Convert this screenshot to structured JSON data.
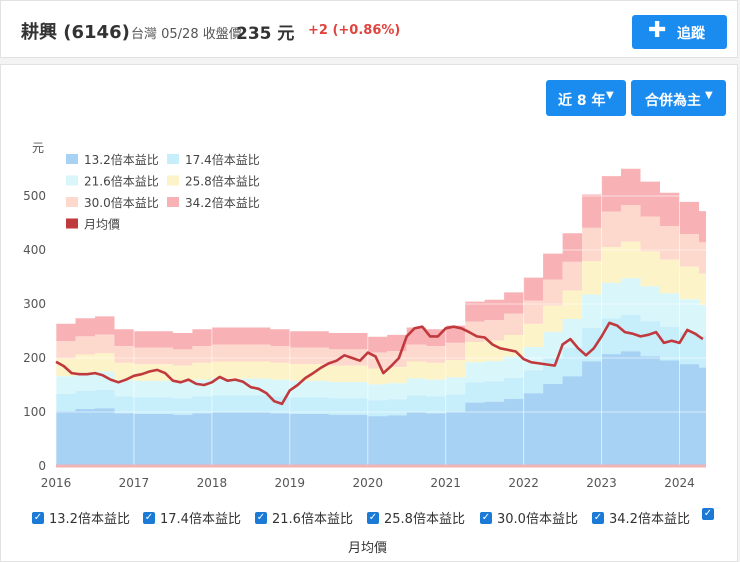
{
  "header": {
    "stock_name": "耕興 (6146)",
    "market_date": "台灣 05/28 收盤價",
    "price": "235 元",
    "change": "+2 (+0.86%)",
    "track_label": "追蹤"
  },
  "controls": {
    "range_label": "近 8 年",
    "mode_label": "合併為主"
  },
  "chart_data": {
    "type": "area",
    "yunit": "元",
    "ylim": [
      0,
      560
    ],
    "yticks": [
      0,
      100,
      200,
      300,
      400,
      500
    ],
    "xticks": [
      "2016",
      "2017",
      "2018",
      "2019",
      "2020",
      "2021",
      "2022",
      "2023",
      "2024"
    ],
    "xrange": [
      2016.0,
      2024.34
    ],
    "colors": [
      "#a7d2f4",
      "#c6eefb",
      "#d9f7fb",
      "#fdf3c8",
      "#fdd8cd",
      "#f8b2b6"
    ],
    "line_color": "#c0393d",
    "multipliers": [
      13.2,
      17.4,
      21.6,
      25.8,
      30.0,
      34.2
    ],
    "legend": [
      {
        "label": "13.2倍本益比",
        "color": "#a7d2f4"
      },
      {
        "label": "17.4倍本益比",
        "color": "#c6eefb"
      },
      {
        "label": "21.6倍本益比",
        "color": "#d9f7fb"
      },
      {
        "label": "25.8倍本益比",
        "color": "#fdf3c8"
      },
      {
        "label": "30.0倍本益比",
        "color": "#fdd8cd"
      },
      {
        "label": "34.2倍本益比",
        "color": "#f8b2b6"
      },
      {
        "label": "月均價",
        "color": "#c0393d"
      }
    ],
    "eps_quarters": [
      {
        "x": 2016.0,
        "eps": 7.7
      },
      {
        "x": 2016.25,
        "eps": 8.0
      },
      {
        "x": 2016.5,
        "eps": 8.1
      },
      {
        "x": 2016.75,
        "eps": 7.4
      },
      {
        "x": 2017.0,
        "eps": 7.3
      },
      {
        "x": 2017.25,
        "eps": 7.3
      },
      {
        "x": 2017.5,
        "eps": 7.2
      },
      {
        "x": 2017.75,
        "eps": 7.4
      },
      {
        "x": 2018.0,
        "eps": 7.5
      },
      {
        "x": 2018.25,
        "eps": 7.5
      },
      {
        "x": 2018.5,
        "eps": 7.5
      },
      {
        "x": 2018.75,
        "eps": 7.4
      },
      {
        "x": 2019.0,
        "eps": 7.3
      },
      {
        "x": 2019.25,
        "eps": 7.3
      },
      {
        "x": 2019.5,
        "eps": 7.2
      },
      {
        "x": 2019.75,
        "eps": 7.2
      },
      {
        "x": 2020.0,
        "eps": 7.0
      },
      {
        "x": 2020.25,
        "eps": 7.1
      },
      {
        "x": 2020.5,
        "eps": 7.5
      },
      {
        "x": 2020.75,
        "eps": 7.4
      },
      {
        "x": 2021.0,
        "eps": 7.6
      },
      {
        "x": 2021.25,
        "eps": 8.9
      },
      {
        "x": 2021.5,
        "eps": 9.0
      },
      {
        "x": 2021.75,
        "eps": 9.4
      },
      {
        "x": 2022.0,
        "eps": 10.2
      },
      {
        "x": 2022.25,
        "eps": 11.5
      },
      {
        "x": 2022.5,
        "eps": 12.6
      },
      {
        "x": 2022.75,
        "eps": 14.7
      },
      {
        "x": 2023.0,
        "eps": 15.7
      },
      {
        "x": 2023.25,
        "eps": 16.1
      },
      {
        "x": 2023.5,
        "eps": 15.4
      },
      {
        "x": 2023.75,
        "eps": 14.8
      },
      {
        "x": 2024.0,
        "eps": 14.3
      },
      {
        "x": 2024.25,
        "eps": 13.8
      }
    ],
    "monthly_price": [
      [
        2016.0,
        193
      ],
      [
        2016.1,
        185
      ],
      [
        2016.2,
        172
      ],
      [
        2016.3,
        170
      ],
      [
        2016.4,
        170
      ],
      [
        2016.5,
        172
      ],
      [
        2016.6,
        168
      ],
      [
        2016.7,
        160
      ],
      [
        2016.8,
        155
      ],
      [
        2016.9,
        160
      ],
      [
        2017.0,
        167
      ],
      [
        2017.1,
        170
      ],
      [
        2017.2,
        175
      ],
      [
        2017.3,
        178
      ],
      [
        2017.4,
        172
      ],
      [
        2017.5,
        158
      ],
      [
        2017.6,
        155
      ],
      [
        2017.7,
        160
      ],
      [
        2017.8,
        152
      ],
      [
        2017.9,
        150
      ],
      [
        2018.0,
        155
      ],
      [
        2018.1,
        165
      ],
      [
        2018.2,
        158
      ],
      [
        2018.3,
        160
      ],
      [
        2018.4,
        156
      ],
      [
        2018.5,
        146
      ],
      [
        2018.6,
        143
      ],
      [
        2018.7,
        135
      ],
      [
        2018.8,
        120
      ],
      [
        2018.9,
        115
      ],
      [
        2019.0,
        140
      ],
      [
        2019.1,
        150
      ],
      [
        2019.2,
        163
      ],
      [
        2019.3,
        172
      ],
      [
        2019.4,
        182
      ],
      [
        2019.5,
        190
      ],
      [
        2019.6,
        195
      ],
      [
        2019.7,
        205
      ],
      [
        2019.8,
        200
      ],
      [
        2019.9,
        195
      ],
      [
        2020.0,
        210
      ],
      [
        2020.1,
        203
      ],
      [
        2020.2,
        172
      ],
      [
        2020.3,
        185
      ],
      [
        2020.4,
        200
      ],
      [
        2020.5,
        240
      ],
      [
        2020.6,
        255
      ],
      [
        2020.7,
        258
      ],
      [
        2020.8,
        240
      ],
      [
        2020.9,
        240
      ],
      [
        2021.0,
        255
      ],
      [
        2021.1,
        258
      ],
      [
        2021.2,
        255
      ],
      [
        2021.3,
        248
      ],
      [
        2021.4,
        240
      ],
      [
        2021.5,
        238
      ],
      [
        2021.6,
        225
      ],
      [
        2021.7,
        218
      ],
      [
        2021.8,
        215
      ],
      [
        2021.9,
        212
      ],
      [
        2022.0,
        198
      ],
      [
        2022.1,
        192
      ],
      [
        2022.2,
        190
      ],
      [
        2022.3,
        188
      ],
      [
        2022.4,
        186
      ],
      [
        2022.5,
        225
      ],
      [
        2022.6,
        235
      ],
      [
        2022.7,
        218
      ],
      [
        2022.8,
        205
      ],
      [
        2022.9,
        218
      ],
      [
        2023.0,
        240
      ],
      [
        2023.1,
        265
      ],
      [
        2023.2,
        260
      ],
      [
        2023.3,
        248
      ],
      [
        2023.4,
        245
      ],
      [
        2023.5,
        240
      ],
      [
        2023.6,
        243
      ],
      [
        2023.7,
        248
      ],
      [
        2023.8,
        228
      ],
      [
        2023.9,
        232
      ],
      [
        2024.0,
        228
      ],
      [
        2024.1,
        252
      ],
      [
        2024.2,
        245
      ],
      [
        2024.3,
        235
      ]
    ]
  }
}
